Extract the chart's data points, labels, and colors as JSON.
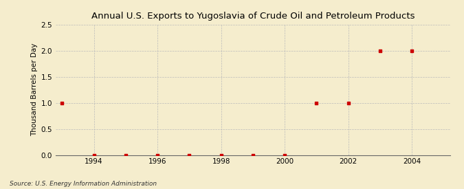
{
  "title": "Annual U.S. Exports to Yugoslavia of Crude Oil and Petroleum Products",
  "ylabel": "Thousand Barrels per Day",
  "source": "Source: U.S. Energy Information Administration",
  "background_color": "#F5EDCD",
  "marker_color": "#CC0000",
  "marker": "s",
  "markersize": 3.5,
  "xlim": [
    1992.8,
    2005.2
  ],
  "ylim": [
    0,
    2.5
  ],
  "yticks": [
    0.0,
    0.5,
    1.0,
    1.5,
    2.0,
    2.5
  ],
  "xticks": [
    1994,
    1996,
    1998,
    2000,
    2002,
    2004
  ],
  "years": [
    1993,
    1994,
    1995,
    1996,
    1997,
    1998,
    1999,
    2000,
    2001,
    2002,
    2003,
    2004
  ],
  "values": [
    1.0,
    0.0,
    0.0,
    0.0,
    0.0,
    0.0,
    0.0,
    0.0,
    1.0,
    1.0,
    2.0,
    2.0
  ]
}
